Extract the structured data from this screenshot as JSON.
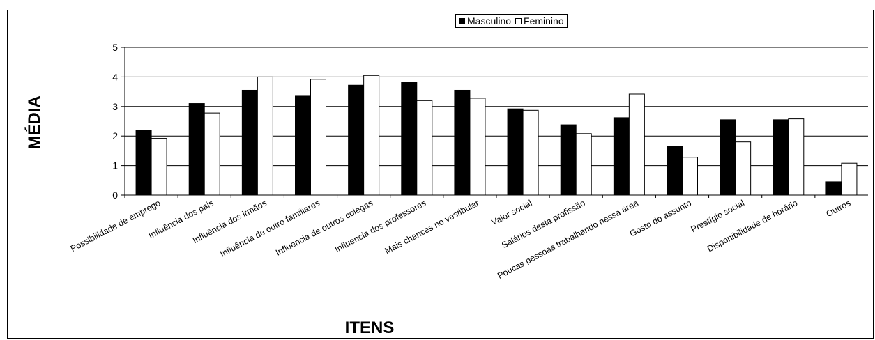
{
  "chart_data": {
    "type": "bar",
    "title": "",
    "xlabel": "ITENS",
    "ylabel": "MÉDIA",
    "ylim": [
      0,
      5
    ],
    "yticks": [
      "0",
      "1",
      "2",
      "3",
      "4",
      "5"
    ],
    "grid": true,
    "legend_position": "top-center",
    "categories": [
      "Possibilidade de emprego",
      "Influência dos pais",
      "Influência dos irmãos",
      "Influência de outro familiares",
      "Influencia de outros colegas",
      "Influencia dos professores",
      "Mais chances no vestibular",
      "Valor social",
      "Salários desta profissão",
      "Poucas pessoas trabalhando nessa área",
      "Gosto do assunto",
      "Prestígio social",
      "Disponibilidade de horário",
      "Outros"
    ],
    "series": [
      {
        "name": "Masculino",
        "color": "#000000",
        "values": [
          2.2,
          3.1,
          3.55,
          3.35,
          3.72,
          3.82,
          3.55,
          2.92,
          2.38,
          2.62,
          1.65,
          2.55,
          2.55,
          0.45
        ]
      },
      {
        "name": "Feminino",
        "color": "#ffffff",
        "values": [
          1.92,
          2.78,
          4.0,
          3.92,
          4.05,
          3.2,
          3.28,
          2.87,
          2.08,
          3.42,
          1.28,
          1.8,
          2.58,
          1.08
        ]
      }
    ]
  },
  "legend": {
    "masculino": "Masculino",
    "feminino": "Feminino"
  }
}
